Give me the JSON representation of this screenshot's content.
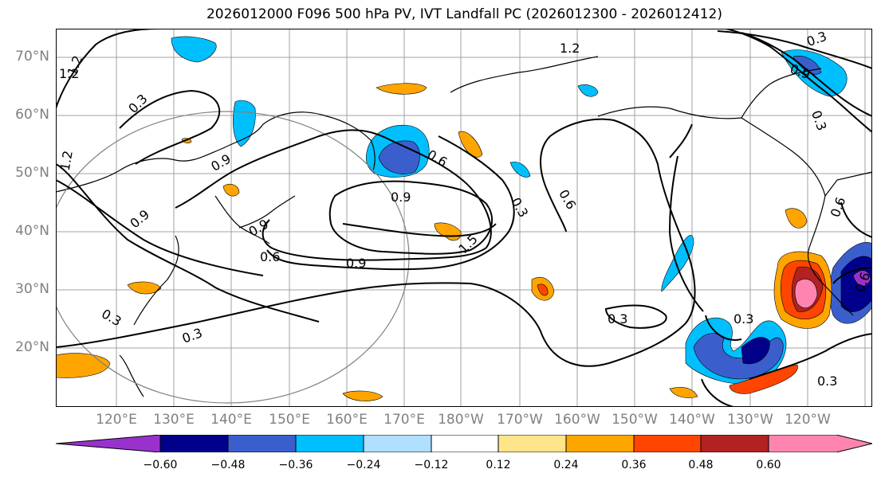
{
  "title": "2026012000 F096 500 hPa PV, IVT Landfall PC (2026012300 - 2026012412)",
  "lat_labels": [
    "70°N",
    "60°N",
    "50°N",
    "40°N",
    "30°N",
    "20°N"
  ],
  "lon_labels": [
    "120°E",
    "130°E",
    "140°E",
    "150°E",
    "160°E",
    "170°E",
    "180°W",
    "170°W",
    "160°W",
    "150°W",
    "140°W",
    "130°W",
    "120°W"
  ],
  "contour_labels": {
    "c1": "1.2",
    "c2": "1.2",
    "c3": "0.3",
    "c4": "0.9",
    "c5": "1.2",
    "c6": "0.9",
    "c7": "0.9",
    "c8": "0.6",
    "c9": "0.9",
    "c10": "1.5",
    "c11": "0.6",
    "c12": "0.3",
    "c13": "0.6",
    "c14": "0.3",
    "c15": "0.3",
    "c16": "0.3",
    "c17": "0.3",
    "c18": "0.9",
    "c19": "0.3",
    "c20": "0.6",
    "c21": "0.3",
    "c22": "0.9",
    "c23": "0.6",
    "c24": "1.2",
    "c25": "0.3"
  },
  "colorbar": {
    "colors": [
      "#9932cc",
      "#00008b",
      "#3a5fcd",
      "#00bfff",
      "#b0e0ff",
      "#ffffff",
      "#ffe58a",
      "#ffa500",
      "#ff4500",
      "#b22222",
      "#ff85b0",
      "#ff85b0"
    ],
    "ticks": [
      "−0.60",
      "−0.48",
      "−0.36",
      "−0.24",
      "−0.12",
      "0.12",
      "0.24",
      "0.36",
      "0.48",
      "0.60"
    ]
  }
}
